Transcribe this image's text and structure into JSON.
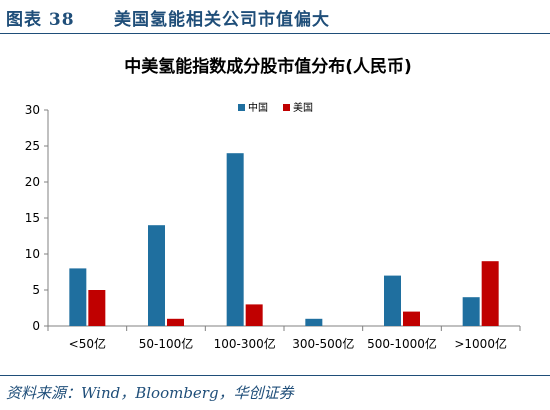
{
  "figure": {
    "label": "图表 38",
    "title": "美国氢能相关公司市值偏大",
    "source": "资料来源：Wind，Bloomberg，华创证券"
  },
  "colors": {
    "header": "#1f4e79",
    "series_china": "#1f6f9f",
    "series_us": "#c00000",
    "axis": "#808080",
    "text": "#000000"
  },
  "chart_data": {
    "type": "bar",
    "title": "中美氢能指数成分股市值分布(人民币)",
    "xlabel": "",
    "ylabel": "",
    "categories": [
      "<50亿",
      "50-100亿",
      "100-300亿",
      "300-500亿",
      "500-1000亿",
      ">1000亿"
    ],
    "series": [
      {
        "name": "中国",
        "values": [
          8,
          14,
          24,
          1,
          7,
          4
        ]
      },
      {
        "name": "美国",
        "values": [
          5,
          1,
          3,
          0,
          2,
          9
        ]
      }
    ],
    "ylim": [
      0,
      30
    ],
    "yticks": [
      0,
      5,
      10,
      15,
      20,
      25,
      30
    ],
    "grid": false,
    "legend": "top-center"
  }
}
